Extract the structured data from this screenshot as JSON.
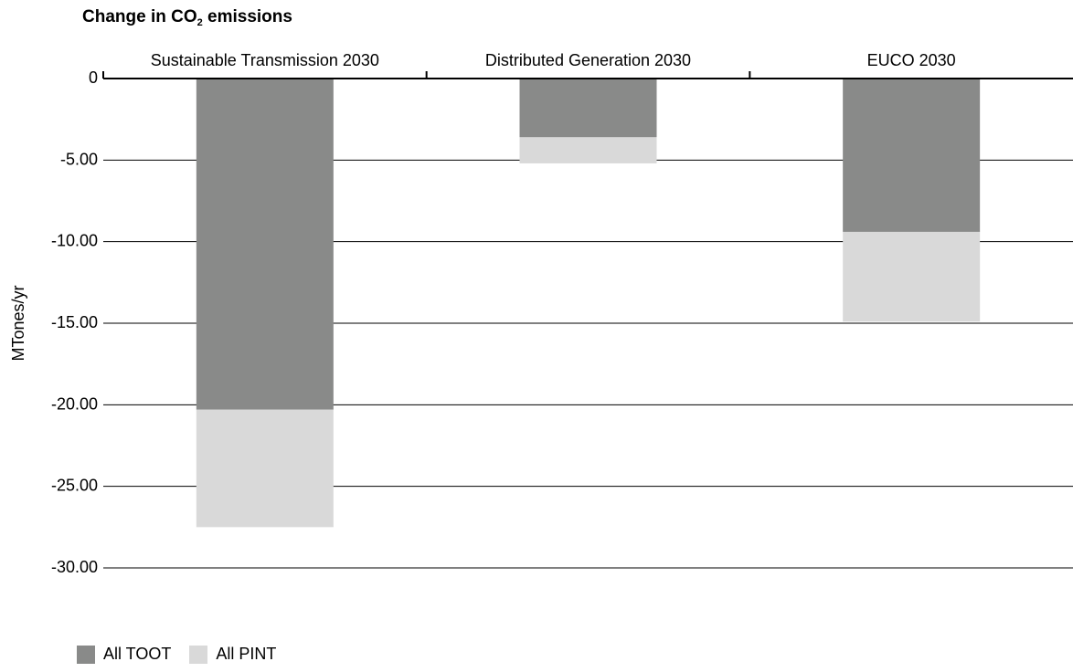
{
  "chart_data": {
    "type": "bar",
    "stacked": true,
    "title_main": "Change in CO",
    "title_sub": "2",
    "title_end": " emissions",
    "ylabel": "MTones/yr",
    "xlabel": "",
    "ylim": [
      -30,
      0
    ],
    "yticks": [
      0,
      -5,
      -10,
      -15,
      -20,
      -25,
      -30
    ],
    "ytick_labels": [
      "0",
      "-5.00",
      "-10.00",
      "-15.00",
      "-20.00",
      "-25.00",
      "-30.00"
    ],
    "categories": [
      "Sustainable Transmission 2030",
      "Distributed Generation 2030",
      "EUCO 2030"
    ],
    "series": [
      {
        "name": "All TOOT",
        "color": "#898a89",
        "values": [
          -20.3,
          -3.6,
          -9.4
        ]
      },
      {
        "name": "All PINT",
        "color": "#d9d9d9",
        "values": [
          -7.2,
          -1.6,
          -5.5
        ]
      }
    ],
    "grid": true,
    "legend_position": "bottom-left",
    "category_labels_position": "top"
  }
}
